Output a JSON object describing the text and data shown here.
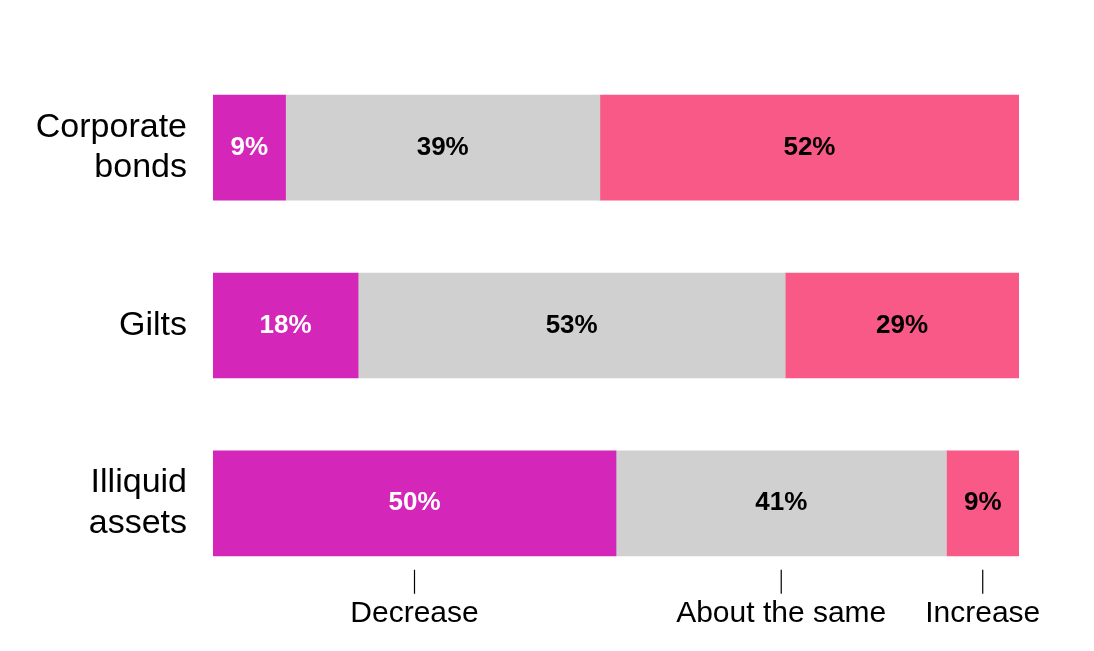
{
  "chart_data": {
    "type": "bar",
    "orientation": "horizontal",
    "stacked": true,
    "categories": [
      "Corporate bonds",
      "Gilts",
      "Illiquid assets"
    ],
    "series": [
      {
        "name": "Decrease",
        "color": "#d427b9",
        "values": [
          9,
          18,
          50
        ],
        "value_labels": [
          "9%",
          "18%",
          "50%"
        ]
      },
      {
        "name": "About the same",
        "color": "#d0d0d0",
        "values": [
          39,
          53,
          41
        ],
        "value_labels": [
          "39%",
          "53%",
          "41%"
        ]
      },
      {
        "name": "Increase",
        "color": "#f95987",
        "values": [
          52,
          29,
          9
        ],
        "value_labels": [
          "52%",
          "29%",
          "9%"
        ]
      }
    ],
    "tick_labels": "y",
    "legend": false
  }
}
